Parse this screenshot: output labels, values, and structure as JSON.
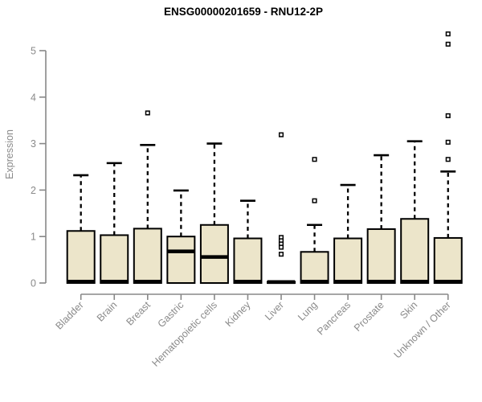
{
  "colors": {
    "background": "#ffffff",
    "axis": "#888888",
    "tick_label": "#8a8a8a",
    "title": "#000000",
    "box_fill": "#ECE5CA",
    "box_stroke": "#000000"
  },
  "chart_data": {
    "type": "box",
    "title": "ENSG00000201659 - RNU12-2P",
    "ylabel": "Expression",
    "xlabel": "",
    "ylim": [
      0,
      5.45
    ],
    "yticks": [
      0,
      1,
      2,
      3,
      4,
      5
    ],
    "grid": false,
    "legend": "none",
    "categories": [
      "Bladder",
      "Brain",
      "Breast",
      "Gastric",
      "Hematopoietic cells",
      "Kidney",
      "Liver",
      "Lung",
      "Pancreas",
      "Prostate",
      "Skin",
      "Unknown / Other"
    ],
    "series": [
      {
        "name": "Bladder",
        "q1": 0,
        "median": 0.03,
        "q3": 1.12,
        "whisker_low": 0,
        "whisker_high": 2.32,
        "outliers": []
      },
      {
        "name": "Brain",
        "q1": 0,
        "median": 0.03,
        "q3": 1.03,
        "whisker_low": 0,
        "whisker_high": 2.58,
        "outliers": []
      },
      {
        "name": "Breast",
        "q1": 0,
        "median": 0.03,
        "q3": 1.17,
        "whisker_low": 0,
        "whisker_high": 2.97,
        "outliers": [
          3.66
        ]
      },
      {
        "name": "Gastric",
        "q1": 0,
        "median": 0.68,
        "q3": 1.0,
        "whisker_low": 0,
        "whisker_high": 1.99,
        "outliers": []
      },
      {
        "name": "Hematopoietic cells",
        "q1": 0,
        "median": 0.56,
        "q3": 1.25,
        "whisker_low": 0,
        "whisker_high": 3.0,
        "outliers": []
      },
      {
        "name": "Kidney",
        "q1": 0,
        "median": 0.03,
        "q3": 0.96,
        "whisker_low": 0,
        "whisker_high": 1.77,
        "outliers": []
      },
      {
        "name": "Liver",
        "q1": 0,
        "median": 0.02,
        "q3": 0.03,
        "whisker_low": 0,
        "whisker_high": 0.03,
        "outliers": [
          3.19,
          0.98,
          0.91,
          0.84,
          0.77,
          0.62
        ]
      },
      {
        "name": "Lung",
        "q1": 0,
        "median": 0.03,
        "q3": 0.67,
        "whisker_low": 0,
        "whisker_high": 1.25,
        "outliers": [
          2.66,
          1.77
        ]
      },
      {
        "name": "Pancreas",
        "q1": 0,
        "median": 0.03,
        "q3": 0.96,
        "whisker_low": 0,
        "whisker_high": 2.11,
        "outliers": []
      },
      {
        "name": "Prostate",
        "q1": 0,
        "median": 0.03,
        "q3": 1.16,
        "whisker_low": 0,
        "whisker_high": 2.75,
        "outliers": []
      },
      {
        "name": "Skin",
        "q1": 0,
        "median": 0.03,
        "q3": 1.38,
        "whisker_low": 0,
        "whisker_high": 3.05,
        "outliers": []
      },
      {
        "name": "Unknown / Other",
        "q1": 0,
        "median": 0.03,
        "q3": 0.97,
        "whisker_low": 0,
        "whisker_high": 2.4,
        "outliers": [
          5.36,
          5.14,
          3.6,
          3.03,
          2.66
        ]
      }
    ]
  }
}
